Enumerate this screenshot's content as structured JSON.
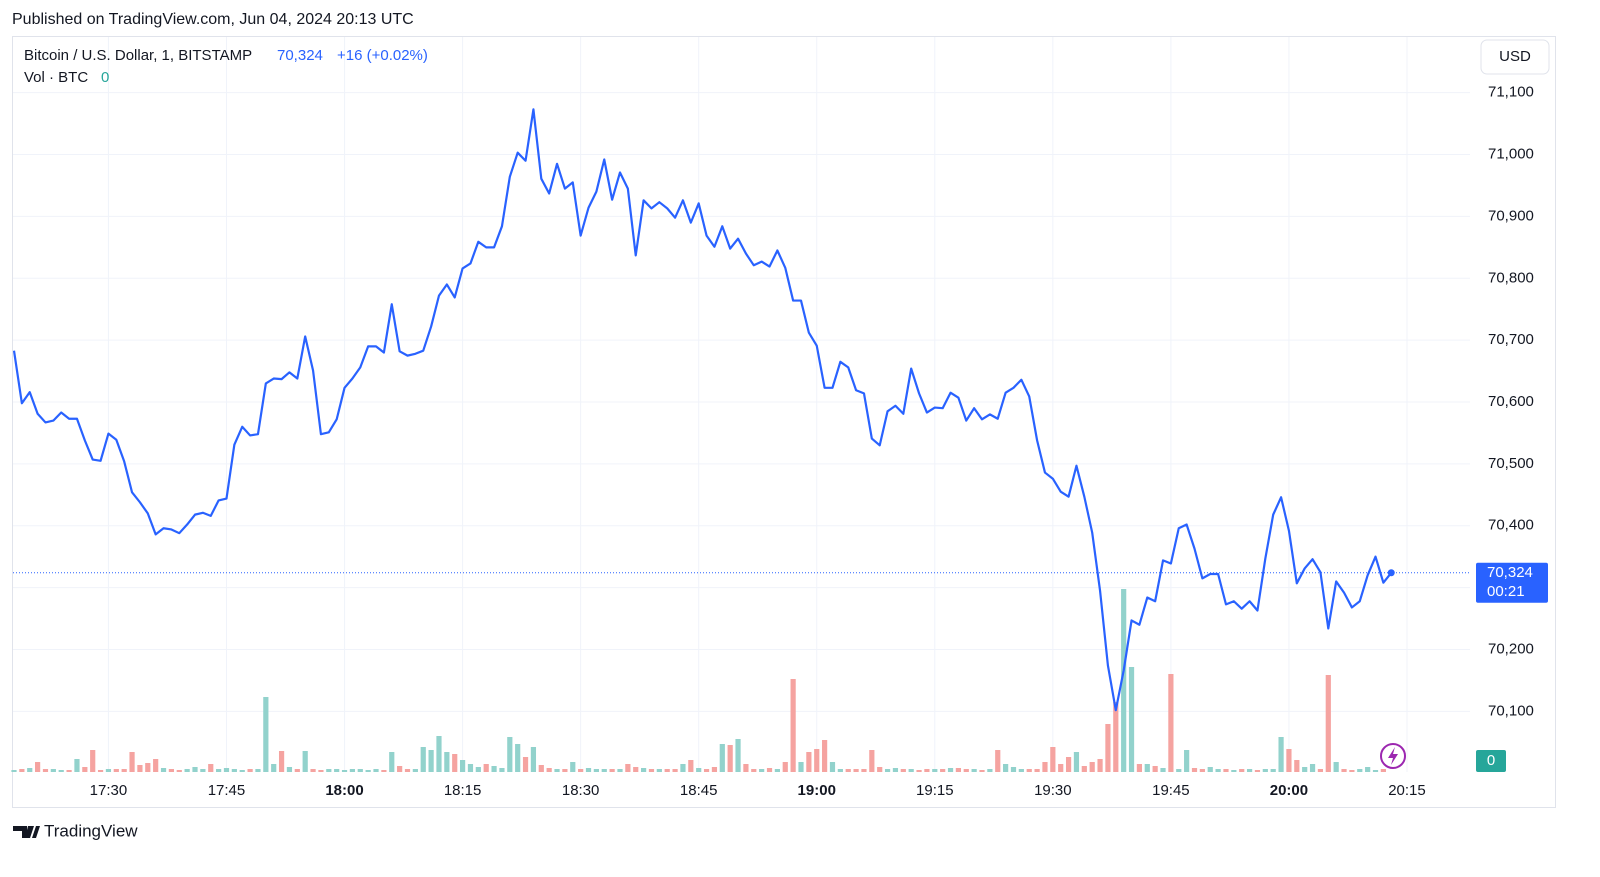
{
  "header": {
    "published": "Published on TradingView.com, Jun 04, 2024 20:13 UTC"
  },
  "chart_data": {
    "type": "line",
    "change_label": "+16 (+0.02%)",
    "currency": "USD",
    "countdown": "00:21",
    "last_price": {
      "value": 70324,
      "label": "70,324"
    },
    "x": [
      "17:18",
      "17:19",
      "17:20",
      "17:21",
      "17:22",
      "17:23",
      "17:24",
      "17:25",
      "17:26",
      "17:27",
      "17:28",
      "17:29",
      "17:30",
      "17:31",
      "17:32",
      "17:33",
      "17:34",
      "17:35",
      "17:36",
      "17:37",
      "17:38",
      "17:39",
      "17:40",
      "17:41",
      "17:42",
      "17:43",
      "17:44",
      "17:45",
      "17:46",
      "17:47",
      "17:48",
      "17:49",
      "17:50",
      "17:51",
      "17:52",
      "17:53",
      "17:54",
      "17:55",
      "17:56",
      "17:57",
      "17:58",
      "17:59",
      "18:00",
      "18:01",
      "18:02",
      "18:03",
      "18:04",
      "18:05",
      "18:06",
      "18:07",
      "18:08",
      "18:09",
      "18:10",
      "18:11",
      "18:12",
      "18:13",
      "18:14",
      "18:15",
      "18:16",
      "18:17",
      "18:18",
      "18:19",
      "18:20",
      "18:21",
      "18:22",
      "18:23",
      "18:24",
      "18:25",
      "18:26",
      "18:27",
      "18:28",
      "18:29",
      "18:30",
      "18:31",
      "18:32",
      "18:33",
      "18:34",
      "18:35",
      "18:36",
      "18:37",
      "18:38",
      "18:39",
      "18:40",
      "18:41",
      "18:42",
      "18:43",
      "18:44",
      "18:45",
      "18:46",
      "18:47",
      "18:48",
      "18:49",
      "18:50",
      "18:51",
      "18:52",
      "18:53",
      "18:54",
      "18:55",
      "18:56",
      "18:57",
      "18:58",
      "18:59",
      "19:00",
      "19:01",
      "19:02",
      "19:03",
      "19:04",
      "19:05",
      "19:06",
      "19:07",
      "19:08",
      "19:09",
      "19:10",
      "19:11",
      "19:12",
      "19:13",
      "19:14",
      "19:15",
      "19:16",
      "19:17",
      "19:18",
      "19:19",
      "19:20",
      "19:21",
      "19:22",
      "19:23",
      "19:24",
      "19:25",
      "19:26",
      "19:27",
      "19:28",
      "19:29",
      "19:30",
      "19:31",
      "19:32",
      "19:33",
      "19:34",
      "19:35",
      "19:36",
      "19:37",
      "19:38",
      "19:39",
      "19:40",
      "19:41",
      "19:42",
      "19:43",
      "19:44",
      "19:45",
      "19:46",
      "19:47",
      "19:48",
      "19:49",
      "19:50",
      "19:51",
      "19:52",
      "19:53",
      "19:54",
      "19:55",
      "19:56",
      "19:57",
      "19:58",
      "19:59",
      "20:00",
      "20:01",
      "20:02",
      "20:03",
      "20:04",
      "20:05",
      "20:06",
      "20:07",
      "20:08",
      "20:09",
      "20:10",
      "20:11",
      "20:12",
      "20:13"
    ],
    "series": [
      {
        "name": "Bitcoin / U.S. Dollar, 1, BITSTAMP",
        "color": "#2962ff",
        "values": [
          70683,
          70598,
          70616,
          70581,
          70567,
          70570,
          70583,
          70573,
          70573,
          70538,
          70507,
          70505,
          70549,
          70539,
          70504,
          70454,
          70438,
          70420,
          70386,
          70396,
          70394,
          70388,
          70402,
          70418,
          70421,
          70416,
          70441,
          70444,
          70531,
          70560,
          70546,
          70548,
          70630,
          70638,
          70637,
          70648,
          70638,
          70706,
          70651,
          70548,
          70551,
          70572,
          70623,
          70638,
          70656,
          70690,
          70690,
          70680,
          70758,
          70682,
          70675,
          70678,
          70683,
          70722,
          70772,
          70790,
          70769,
          70816,
          70824,
          70859,
          70850,
          70850,
          70884,
          70964,
          71003,
          70990,
          71073,
          70961,
          70937,
          70985,
          70945,
          70955,
          70869,
          70914,
          70940,
          70992,
          70927,
          70971,
          70945,
          70837,
          70926,
          70913,
          70923,
          70913,
          70898,
          70926,
          70890,
          70921,
          70869,
          70851,
          70884,
          70848,
          70864,
          70840,
          70821,
          70827,
          70819,
          70845,
          70817,
          70764,
          70764,
          70712,
          70691,
          70623,
          70623,
          70665,
          70656,
          70619,
          70614,
          70541,
          70530,
          70585,
          70594,
          70581,
          70654,
          70614,
          70583,
          70591,
          70590,
          70615,
          70607,
          70570,
          70590,
          70572,
          70580,
          70573,
          70615,
          70623,
          70636,
          70609,
          70538,
          70486,
          70476,
          70455,
          70447,
          70497,
          70447,
          70389,
          70295,
          70174,
          70102,
          70166,
          70247,
          70240,
          70284,
          70278,
          70344,
          70339,
          70396,
          70402,
          70363,
          70315,
          70322,
          70322,
          70273,
          70278,
          70266,
          70278,
          70263,
          70347,
          70418,
          70446,
          70392,
          70307,
          70331,
          70346,
          70325,
          70234,
          70310,
          70292,
          70268,
          70278,
          70320,
          70350,
          70308,
          70324
        ]
      },
      {
        "name": "Vol · BTC",
        "type": "bar",
        "up_color": "#92d2cc",
        "down_color": "#f5a3a0",
        "values": [
          2,
          3,
          4,
          10,
          3,
          3,
          2,
          2,
          13,
          5,
          22,
          2,
          3,
          3,
          3,
          20,
          7,
          9,
          13,
          4,
          3,
          2,
          3,
          5,
          3,
          8,
          3,
          4,
          3,
          2,
          3,
          3,
          75,
          8,
          21,
          5,
          3,
          21,
          3,
          2,
          3,
          3,
          2,
          3,
          3,
          2,
          3,
          2,
          20,
          6,
          3,
          3,
          25,
          22,
          36,
          20,
          18,
          12,
          8,
          5,
          8,
          6,
          4,
          35,
          28,
          15,
          25,
          7,
          4,
          3,
          3,
          10,
          3,
          4,
          3,
          3,
          3,
          3,
          8,
          5,
          4,
          3,
          3,
          3,
          3,
          8,
          12,
          4,
          3,
          5,
          28,
          27,
          33,
          8,
          3,
          3,
          4,
          3,
          10,
          93,
          10,
          20,
          23,
          32,
          10,
          3,
          3,
          3,
          3,
          22,
          5,
          3,
          4,
          3,
          3,
          2,
          3,
          3,
          3,
          4,
          4,
          3,
          3,
          2,
          3,
          22,
          8,
          5,
          3,
          3,
          3,
          10,
          25,
          8,
          15,
          20,
          6,
          10,
          13,
          48,
          70,
          183,
          105,
          8,
          8,
          6,
          4,
          98,
          3,
          22,
          4,
          3,
          5,
          3,
          3,
          2,
          3,
          3,
          2,
          3,
          3,
          35,
          23,
          12,
          5,
          8,
          3,
          97,
          10,
          3,
          2,
          3,
          5,
          2,
          3,
          0
        ]
      }
    ],
    "ylim": [
      70002,
      71190
    ],
    "yticks": [
      {
        "value": 70100,
        "label": "70,100"
      },
      {
        "value": 70200,
        "label": "70,200"
      },
      {
        "value": 70300,
        "label": "70,300"
      },
      {
        "value": 70400,
        "label": "70,400"
      },
      {
        "value": 70500,
        "label": "70,500"
      },
      {
        "value": 70600,
        "label": "70,600"
      },
      {
        "value": 70700,
        "label": "70,700"
      },
      {
        "value": 70800,
        "label": "70,800"
      },
      {
        "value": 70900,
        "label": "70,900"
      },
      {
        "value": 71000,
        "label": "71,000"
      },
      {
        "value": 71100,
        "label": "71,100"
      }
    ],
    "xticks": [
      "17:30",
      "17:45",
      "18:00",
      "18:15",
      "18:30",
      "18:45",
      "19:00",
      "19:15",
      "19:30",
      "19:45",
      "20:00",
      "20:15"
    ],
    "grid": true
  },
  "footer": {
    "brand": "TradingView"
  }
}
